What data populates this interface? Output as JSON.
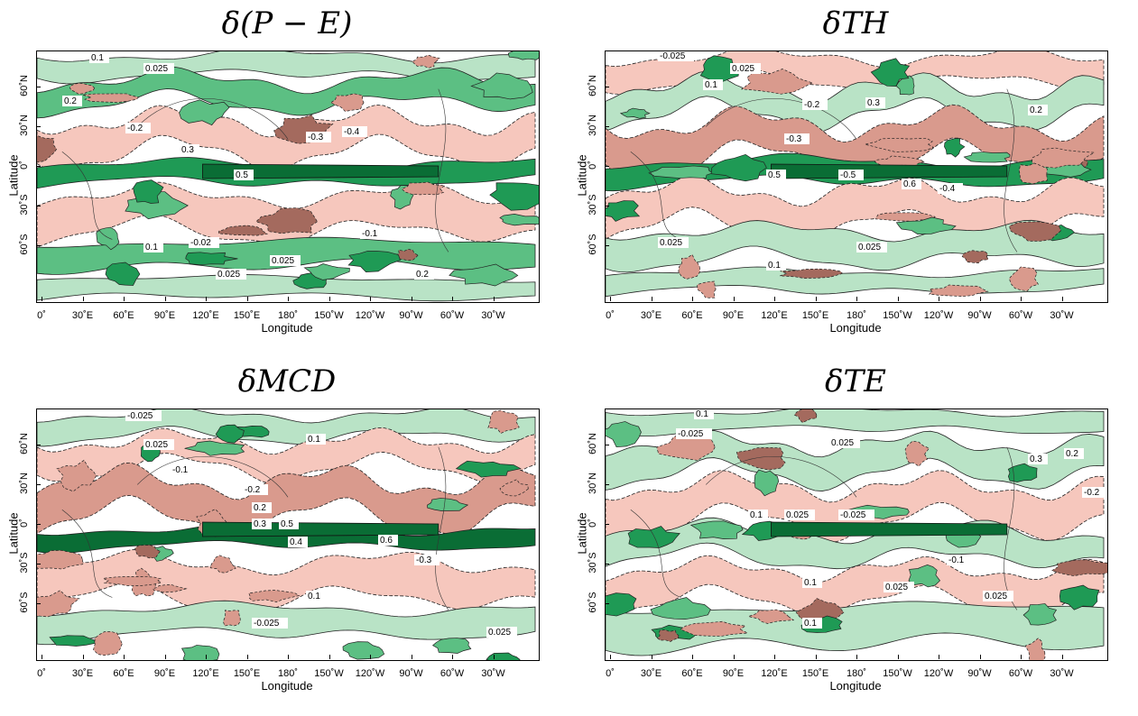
{
  "panels": [
    {
      "title": "δ(P − E)",
      "xlabel": "Longitude",
      "ylabel": "Latitude",
      "contour_labels": [
        "0.1",
        "0.025",
        "0.2",
        "-0.2",
        "0.3",
        "-0.3",
        "-0.4",
        "0.5",
        "-0.1",
        "-0.02",
        "0.025",
        "0.1",
        "0.2",
        "0.025"
      ]
    },
    {
      "title": "δTH",
      "xlabel": "Longitude",
      "ylabel": "Latitude",
      "contour_labels": [
        "-0.025",
        "0.025",
        "0.1",
        "-0.2",
        "0.3",
        "0.2",
        "-0.3",
        "0.5",
        "-0.5",
        "0.6",
        "-0.4",
        "0.025",
        "0.1",
        "0.025"
      ]
    },
    {
      "title": "δMCD",
      "xlabel": "Longitude",
      "ylabel": "Latitude",
      "contour_labels": [
        "-0.025",
        "0.025",
        "0.1",
        "-0.1",
        "-0.2",
        "0.2",
        "0.3",
        "0.5",
        "0.4",
        "0.6",
        "-0.3",
        "0.1",
        "0.025",
        "-0.025"
      ]
    },
    {
      "title": "δTE",
      "xlabel": "Longitude",
      "ylabel": "Latitude",
      "contour_labels": [
        "0.1",
        "-0.025",
        "0.025",
        "0.3",
        "0.2",
        "-0.2",
        "0.1",
        "0.025",
        "-0.025",
        "-0.1",
        "0.025",
        "0.1",
        "0.025",
        "0.1"
      ]
    }
  ],
  "xticks": [
    "0˚",
    "30˚E",
    "60˚E",
    "90˚E",
    "120˚E",
    "150˚E",
    "180˚",
    "150˚W",
    "120˚W",
    "90˚W",
    "60˚W",
    "30˚W"
  ],
  "yticks": [
    "60˚N",
    "30˚N",
    "0˚",
    "30˚S",
    "60˚S"
  ],
  "colors": {
    "green_light": "#b9e3c6",
    "green_mid": "#5cbf83",
    "green_dark": "#1f9a55",
    "green_deep": "#0a6d35",
    "pink_light": "#f6c7bd",
    "pink_mid": "#d99a8d",
    "brown_dark": "#a46a5e"
  }
}
